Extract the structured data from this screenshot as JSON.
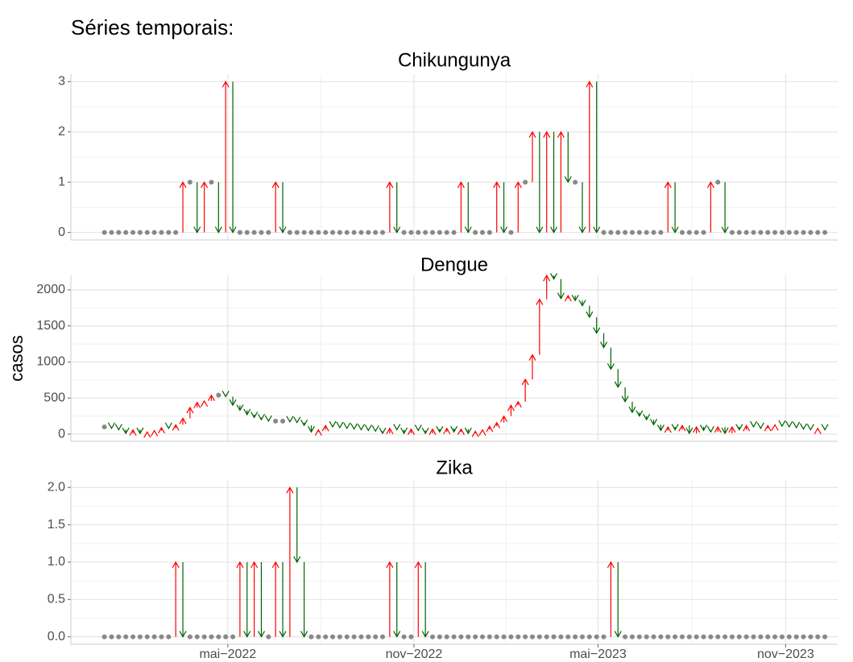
{
  "title": "Séries temporais:",
  "y_label": "casos",
  "chart_data": [
    {
      "type": "arrow",
      "title": "Chikungunya",
      "x": [
        0,
        1,
        2,
        3,
        4,
        5,
        6,
        7,
        8,
        9,
        10,
        11,
        12,
        13,
        14,
        15,
        16,
        17,
        18,
        19,
        20,
        21,
        22,
        23,
        24,
        25,
        26,
        27,
        28,
        29,
        30,
        31,
        32,
        33,
        34,
        35,
        36,
        37,
        38,
        39,
        40,
        41,
        42,
        43,
        44,
        45,
        46,
        47,
        48,
        49,
        50,
        51,
        52,
        53,
        54,
        55,
        56,
        57,
        58,
        59,
        60,
        61,
        62,
        63,
        64,
        65,
        66,
        67,
        68,
        69,
        70,
        71,
        72,
        73,
        74,
        75,
        76,
        77,
        78,
        79,
        80,
        81,
        82,
        83,
        84,
        85,
        86,
        87,
        88,
        89,
        90,
        91,
        92,
        93,
        94,
        95,
        96,
        97,
        98,
        99,
        100,
        101
      ],
      "values": [
        0,
        0,
        0,
        0,
        0,
        0,
        0,
        0,
        0,
        0,
        0,
        1,
        1,
        0,
        1,
        1,
        0,
        3,
        0,
        0,
        0,
        0,
        0,
        0,
        1,
        0,
        0,
        0,
        0,
        0,
        0,
        0,
        0,
        0,
        0,
        0,
        0,
        0,
        0,
        0,
        1,
        0,
        0,
        0,
        0,
        0,
        0,
        0,
        0,
        0,
        1,
        0,
        0,
        0,
        0,
        1,
        0,
        0,
        1,
        1,
        2,
        0,
        2,
        0,
        2,
        1,
        1,
        0,
        3,
        0,
        0,
        0,
        0,
        0,
        0,
        0,
        0,
        0,
        0,
        1,
        0,
        0,
        0,
        0,
        0,
        1,
        1,
        0,
        0,
        0,
        0,
        0,
        0,
        0,
        0,
        0,
        0,
        0,
        0,
        0,
        0,
        0
      ],
      "ylim": [
        -0.15,
        3.15
      ],
      "yticks": [
        0,
        1,
        2,
        3
      ],
      "up_color": "#ff0000",
      "down_color": "#006400",
      "flat_color": "#888888"
    },
    {
      "type": "arrow",
      "title": "Dengue",
      "x": [
        0,
        1,
        2,
        3,
        4,
        5,
        6,
        7,
        8,
        9,
        10,
        11,
        12,
        13,
        14,
        15,
        16,
        17,
        18,
        19,
        20,
        21,
        22,
        23,
        24,
        25,
        26,
        27,
        28,
        29,
        30,
        31,
        32,
        33,
        34,
        35,
        36,
        37,
        38,
        39,
        40,
        41,
        42,
        43,
        44,
        45,
        46,
        47,
        48,
        49,
        50,
        51,
        52,
        53,
        54,
        55,
        56,
        57,
        58,
        59,
        60,
        61,
        62,
        63,
        64,
        65,
        66,
        67,
        68,
        69,
        70,
        71,
        72,
        73,
        74,
        75,
        76,
        77,
        78,
        79,
        80,
        81,
        82,
        83,
        84,
        85,
        86,
        87,
        88,
        89,
        90,
        91,
        92,
        93,
        94,
        95,
        96,
        97,
        98,
        99,
        100,
        101
      ],
      "values": [
        100,
        80,
        60,
        10,
        60,
        10,
        30,
        50,
        90,
        80,
        130,
        220,
        370,
        440,
        460,
        540,
        540,
        520,
        400,
        330,
        270,
        230,
        200,
        180,
        180,
        180,
        170,
        160,
        120,
        30,
        60,
        120,
        100,
        90,
        80,
        70,
        60,
        50,
        40,
        10,
        80,
        60,
        10,
        70,
        50,
        10,
        70,
        30,
        80,
        30,
        70,
        10,
        40,
        60,
        110,
        160,
        250,
        400,
        450,
        760,
        1100,
        1870,
        2200,
        2150,
        1880,
        1920,
        1850,
        1780,
        1620,
        1400,
        1200,
        900,
        650,
        450,
        300,
        250,
        200,
        130,
        50,
        100,
        60,
        120,
        10,
        100,
        50,
        30,
        100,
        10,
        100,
        60,
        120,
        100,
        80,
        120,
        130,
        110,
        100,
        90,
        70,
        60,
        80,
        60
      ],
      "ylim": [
        -100,
        2200
      ],
      "yticks": [
        0,
        500,
        1000,
        1500,
        2000
      ],
      "up_color": "#ff0000",
      "down_color": "#006400",
      "flat_color": "#888888"
    },
    {
      "type": "arrow",
      "title": "Zika",
      "x": [
        0,
        1,
        2,
        3,
        4,
        5,
        6,
        7,
        8,
        9,
        10,
        11,
        12,
        13,
        14,
        15,
        16,
        17,
        18,
        19,
        20,
        21,
        22,
        23,
        24,
        25,
        26,
        27,
        28,
        29,
        30,
        31,
        32,
        33,
        34,
        35,
        36,
        37,
        38,
        39,
        40,
        41,
        42,
        43,
        44,
        45,
        46,
        47,
        48,
        49,
        50,
        51,
        52,
        53,
        54,
        55,
        56,
        57,
        58,
        59,
        60,
        61,
        62,
        63,
        64,
        65,
        66,
        67,
        68,
        69,
        70,
        71,
        72,
        73,
        74,
        75,
        76,
        77,
        78,
        79,
        80,
        81,
        82,
        83,
        84,
        85,
        86,
        87,
        88,
        89,
        90,
        91,
        92,
        93,
        94,
        95,
        96,
        97,
        98,
        99,
        100,
        101
      ],
      "values": [
        0,
        0,
        0,
        0,
        0,
        0,
        0,
        0,
        0,
        0,
        1,
        0,
        0,
        0,
        0,
        0,
        0,
        0,
        0,
        1,
        0,
        1,
        0,
        0,
        1,
        0,
        2,
        1,
        0,
        0,
        0,
        0,
        0,
        0,
        0,
        0,
        0,
        0,
        0,
        0,
        1,
        0,
        0,
        0,
        1,
        0,
        0,
        0,
        0,
        0,
        0,
        0,
        0,
        0,
        0,
        0,
        0,
        0,
        0,
        0,
        0,
        0,
        0,
        0,
        0,
        0,
        0,
        0,
        0,
        0,
        0,
        1,
        0,
        0,
        0,
        0,
        0,
        0,
        0,
        0,
        0,
        0,
        0,
        0,
        0,
        0,
        0,
        0,
        0,
        0,
        0,
        0,
        0,
        0,
        0,
        0,
        0,
        0,
        0,
        0,
        0,
        0
      ],
      "ylim": [
        -0.1,
        2.1
      ],
      "yticks": [
        {
          "value": 0,
          "label": "0.0"
        },
        {
          "value": 0.5,
          "label": "0.5"
        },
        {
          "value": 1,
          "label": "1.0"
        },
        {
          "value": 1.5,
          "label": "1.5"
        },
        {
          "value": 2,
          "label": "2.0"
        }
      ],
      "xlim": [
        -4.7,
        102.8
      ],
      "xticks": [
        {
          "value": 17.3,
          "label": "mai−2022"
        },
        {
          "value": 43.4,
          "label": "nov−2022"
        },
        {
          "value": 69.2,
          "label": "mai−2023"
        },
        {
          "value": 95.5,
          "label": "nov−2023"
        }
      ],
      "up_color": "#ff0000",
      "down_color": "#006400",
      "flat_color": "#888888"
    }
  ]
}
